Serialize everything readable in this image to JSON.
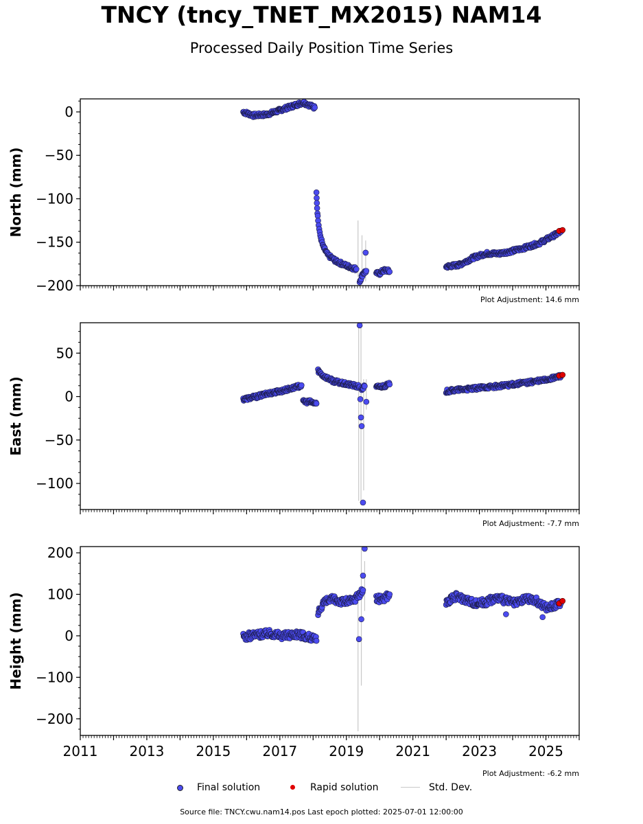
{
  "title": "TNCY (tncy_TNET_MX2015) NAM14",
  "subtitle": "Processed Daily Position Time Series",
  "legend": {
    "final_label": "Final solution",
    "rapid_label": "Rapid solution",
    "std_label": "Std. Dev.",
    "final_color": "#4b4bf0",
    "rapid_color": "#e00000",
    "std_color": "#c8c8c8"
  },
  "source": "Source file: TNCY.cwu.nam14.pos  Last epoch plotted: 2025-07-01 12:00:00",
  "chart_data": [
    {
      "type": "scatter",
      "ylabel": "North (mm)",
      "annotation": "Plot Adjustment: 14.6 mm",
      "xlim": [
        2011,
        2026
      ],
      "ylim": [
        -200,
        15
      ],
      "yticks": [
        0,
        -50,
        -100,
        -150,
        -200
      ],
      "yticklabels": [
        "0",
        "−50",
        "−100",
        "−150",
        "−200"
      ],
      "series": [
        {
          "name": "Final solution",
          "segments": [
            {
              "x": [
                2015.9,
                2016.2,
                2016.6,
                2017.0,
                2017.4,
                2017.7,
                2018.05
              ],
              "y": [
                0,
                -4,
                -3,
                2,
                7,
                11,
                5
              ]
            },
            {
              "x": [
                2018.1,
                2018.12,
                2018.15,
                2018.2,
                2018.3,
                2018.45,
                2018.7,
                2019.0,
                2019.3
              ],
              "y": [
                -91,
                -110,
                -125,
                -140,
                -155,
                -165,
                -172,
                -177,
                -181
              ]
            },
            {
              "x": [
                2019.4,
                2019.5,
                2019.6
              ],
              "y": [
                -195,
                -186,
                -183
              ]
            },
            {
              "x": [
                2019.9,
                2020.0,
                2020.1,
                2020.2,
                2020.3
              ],
              "y": [
                -186,
                -186,
                -183,
                -182,
                -184
              ]
            },
            {
              "x": [
                2022.0,
                2022.4,
                2022.8,
                2023.2,
                2023.6,
                2024.0,
                2024.4,
                2024.8,
                2025.2,
                2025.45
              ],
              "y": [
                -178,
                -176,
                -168,
                -163,
                -163,
                -160,
                -156,
                -151,
                -143,
                -138
              ]
            }
          ],
          "outliers": {
            "x": [
              2019.58
            ],
            "y": [
              -162
            ]
          }
        },
        {
          "name": "Rapid solution",
          "x": [
            2025.4,
            2025.5
          ],
          "y": [
            -137,
            -136
          ]
        }
      ],
      "stddev": [
        {
          "x": 2019.35,
          "lo": -190,
          "hi": -125
        },
        {
          "x": 2019.47,
          "lo": -195,
          "hi": -142
        },
        {
          "x": 2019.58,
          "lo": -195,
          "hi": -148
        }
      ]
    },
    {
      "type": "scatter",
      "ylabel": "East (mm)",
      "annotation": "Plot Adjustment: -7.7 mm",
      "xlim": [
        2011,
        2026
      ],
      "ylim": [
        -130,
        85
      ],
      "yticks": [
        50,
        0,
        -50,
        -100
      ],
      "yticklabels": [
        "50",
        "0",
        "−50",
        "−100"
      ],
      "series": [
        {
          "name": "Final solution",
          "segments": [
            {
              "x": [
                2015.9,
                2016.3,
                2016.7,
                2017.1,
                2017.5,
                2017.65
              ],
              "y": [
                -3,
                0,
                4,
                7,
                11,
                13
              ]
            },
            {
              "x": [
                2017.7,
                2017.9,
                2018.1
              ],
              "y": [
                -6,
                -6,
                -8
              ]
            },
            {
              "x": [
                2018.15,
                2018.3,
                2018.6,
                2018.9,
                2019.2,
                2019.4
              ],
              "y": [
                30,
                24,
                18,
                15,
                13,
                11
              ]
            },
            {
              "x": [
                2019.45,
                2019.55
              ],
              "y": [
                8,
                12
              ]
            },
            {
              "x": [
                2019.9,
                2020.1,
                2020.3
              ],
              "y": [
                11,
                12,
                14
              ]
            },
            {
              "x": [
                2022.0,
                2022.4,
                2022.8,
                2023.2,
                2023.6,
                2024.0,
                2024.4,
                2024.8,
                2025.2,
                2025.45
              ],
              "y": [
                6,
                8,
                9,
                11,
                12,
                14,
                16,
                18,
                21,
                24
              ]
            }
          ],
          "outliers": {
            "x": [
              2019.4,
              2019.42,
              2019.44,
              2019.46,
              2019.5,
              2019.6
            ],
            "y": [
              82,
              -3,
              -24,
              -34,
              -122,
              -6
            ]
          }
        },
        {
          "name": "Rapid solution",
          "x": [
            2025.4,
            2025.5
          ],
          "y": [
            24,
            25
          ]
        }
      ],
      "stddev": [
        {
          "x": 2019.37,
          "lo": -120,
          "hi": 80
        },
        {
          "x": 2019.44,
          "lo": -125,
          "hi": 85
        },
        {
          "x": 2019.52,
          "lo": -108,
          "hi": 20
        },
        {
          "x": 2019.6,
          "lo": -15,
          "hi": 20
        }
      ]
    },
    {
      "type": "scatter",
      "ylabel": "Height (mm)",
      "annotation": "Plot Adjustment: -6.2 mm",
      "xlim": [
        2011,
        2026
      ],
      "ylim": [
        -240,
        215
      ],
      "yticks": [
        200,
        100,
        0,
        -100,
        -200
      ],
      "yticklabels": [
        "200",
        "100",
        "0",
        "−100",
        "−200"
      ],
      "xticks": [
        2011,
        2013,
        2015,
        2017,
        2019,
        2021,
        2023,
        2025
      ],
      "series": [
        {
          "name": "Final solution",
          "segments": [
            {
              "x": [
                2015.9,
                2016.3,
                2016.7,
                2017.1,
                2017.5,
                2017.9,
                2018.1
              ],
              "y": [
                -3,
                3,
                6,
                0,
                5,
                -3,
                -12
              ]
            },
            {
              "x": [
                2018.15,
                2018.3,
                2018.6,
                2018.9,
                2019.2,
                2019.5
              ],
              "y": [
                55,
                80,
                88,
                82,
                85,
                110
              ]
            },
            {
              "x": [
                2019.9,
                2020.1,
                2020.3
              ],
              "y": [
                88,
                90,
                100
              ]
            },
            {
              "x": [
                2022.0,
                2022.3,
                2022.6,
                2022.9,
                2023.2,
                2023.5,
                2023.8,
                2024.1,
                2024.4,
                2024.7,
                2025.0,
                2025.45
              ],
              "y": [
                80,
                95,
                88,
                78,
                82,
                92,
                85,
                78,
                90,
                85,
                68,
                78
              ]
            }
          ],
          "outliers": {
            "x": [
              2019.38,
              2019.45,
              2019.5,
              2019.55,
              2023.8,
              2024.9
            ],
            "y": [
              -8,
              40,
              145,
              210,
              52,
              45
            ]
          }
        },
        {
          "name": "Rapid solution",
          "x": [
            2025.4,
            2025.5
          ],
          "y": [
            78,
            84
          ]
        }
      ],
      "stddev": [
        {
          "x": 2019.35,
          "lo": -230,
          "hi": 110
        },
        {
          "x": 2019.45,
          "lo": -120,
          "hi": 215
        },
        {
          "x": 2019.55,
          "lo": 60,
          "hi": 180
        }
      ]
    }
  ]
}
